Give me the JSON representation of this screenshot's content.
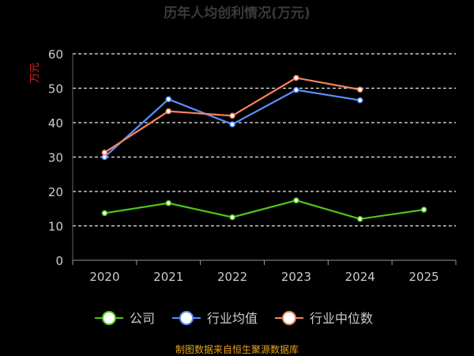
{
  "chart_data": {
    "type": "line",
    "title": "历年人均创利情况(万元)",
    "ylabel": "万元",
    "xlabel": "",
    "categories": [
      "2020",
      "2021",
      "2022",
      "2023",
      "2024",
      "2025"
    ],
    "ylim": [
      0,
      60
    ],
    "yticks": [
      0,
      10,
      20,
      30,
      40,
      50,
      60
    ],
    "grid": true,
    "legend_position": "bottom",
    "series": [
      {
        "name": "公司",
        "color": "#52c41a",
        "values": [
          13.7,
          16.6,
          12.5,
          17.4,
          12.0,
          14.7
        ]
      },
      {
        "name": "行业均值",
        "color": "#5b8ff9",
        "values": [
          30.0,
          46.8,
          39.5,
          49.5,
          46.5,
          null
        ]
      },
      {
        "name": "行业中位数",
        "color": "#f4845f",
        "values": [
          31.3,
          43.3,
          42.0,
          53.0,
          49.6,
          null
        ]
      }
    ],
    "source_note": "制图数据来自恒生聚源数据库"
  },
  "colors": {
    "background": "#000000",
    "text": "#cccccc",
    "ylabel": "#e02020",
    "grid": "#e8e8e8",
    "source": "#e8a317"
  }
}
